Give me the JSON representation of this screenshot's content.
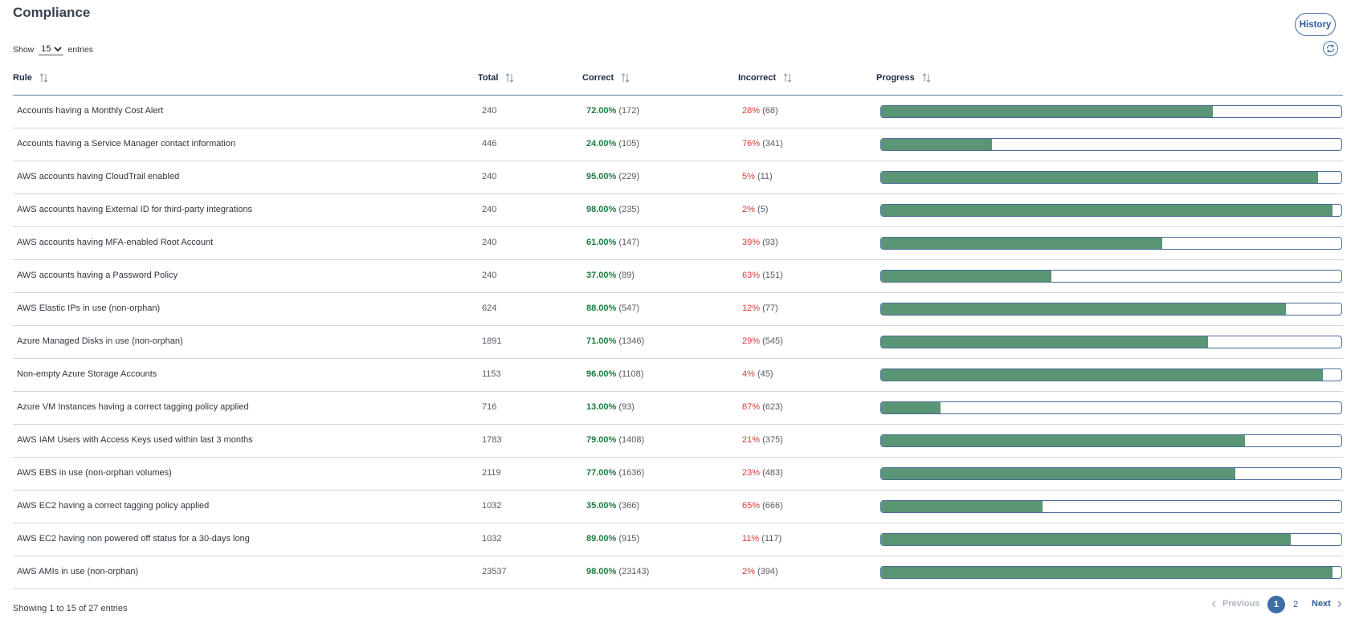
{
  "page": {
    "title": "Compliance"
  },
  "toolbar": {
    "history_label": "History"
  },
  "length_control": {
    "show_label": "Show",
    "selected": "15",
    "entries_label": "entries"
  },
  "table": {
    "headers": {
      "rule": "Rule",
      "total": "Total",
      "correct": "Correct",
      "incorrect": "Incorrect",
      "progress": "Progress"
    },
    "rows": [
      {
        "rule": "Accounts having a Monthly Cost Alert",
        "total": "240",
        "correct_pct": "72.00%",
        "correct_count": "(172)",
        "incorrect_pct": "28%",
        "incorrect_count": "(68)",
        "progress": 72
      },
      {
        "rule": "Accounts having a Service Manager contact information",
        "total": "446",
        "correct_pct": "24.00%",
        "correct_count": "(105)",
        "incorrect_pct": "76%",
        "incorrect_count": "(341)",
        "progress": 24
      },
      {
        "rule": "AWS accounts having CloudTrail enabled",
        "total": "240",
        "correct_pct": "95.00%",
        "correct_count": "(229)",
        "incorrect_pct": "5%",
        "incorrect_count": "(11)",
        "progress": 95
      },
      {
        "rule": "AWS accounts having External ID for third-party integrations",
        "total": "240",
        "correct_pct": "98.00%",
        "correct_count": "(235)",
        "incorrect_pct": "2%",
        "incorrect_count": "(5)",
        "progress": 98
      },
      {
        "rule": "AWS accounts having MFA-enabled Root Account",
        "total": "240",
        "correct_pct": "61.00%",
        "correct_count": "(147)",
        "incorrect_pct": "39%",
        "incorrect_count": "(93)",
        "progress": 61
      },
      {
        "rule": "AWS accounts having a Password Policy",
        "total": "240",
        "correct_pct": "37.00%",
        "correct_count": "(89)",
        "incorrect_pct": "63%",
        "incorrect_count": "(151)",
        "progress": 37
      },
      {
        "rule": "AWS Elastic IPs in use (non-orphan)",
        "total": "624",
        "correct_pct": "88.00%",
        "correct_count": "(547)",
        "incorrect_pct": "12%",
        "incorrect_count": "(77)",
        "progress": 88
      },
      {
        "rule": "Azure Managed Disks in use (non-orphan)",
        "total": "1891",
        "correct_pct": "71.00%",
        "correct_count": "(1346)",
        "incorrect_pct": "29%",
        "incorrect_count": "(545)",
        "progress": 71
      },
      {
        "rule": "Non-empty Azure Storage Accounts",
        "total": "1153",
        "correct_pct": "96.00%",
        "correct_count": "(1108)",
        "incorrect_pct": "4%",
        "incorrect_count": "(45)",
        "progress": 96
      },
      {
        "rule": "Azure VM Instances having a correct tagging policy applied",
        "total": "716",
        "correct_pct": "13.00%",
        "correct_count": "(93)",
        "incorrect_pct": "87%",
        "incorrect_count": "(623)",
        "progress": 13
      },
      {
        "rule": "AWS IAM Users with Access Keys used within last 3 months",
        "total": "1783",
        "correct_pct": "79.00%",
        "correct_count": "(1408)",
        "incorrect_pct": "21%",
        "incorrect_count": "(375)",
        "progress": 79
      },
      {
        "rule": "AWS EBS in use (non-orphan volumes)",
        "total": "2119",
        "correct_pct": "77.00%",
        "correct_count": "(1636)",
        "incorrect_pct": "23%",
        "incorrect_count": "(483)",
        "progress": 77
      },
      {
        "rule": "AWS EC2 having a correct tagging policy applied",
        "total": "1032",
        "correct_pct": "35.00%",
        "correct_count": "(366)",
        "incorrect_pct": "65%",
        "incorrect_count": "(666)",
        "progress": 35
      },
      {
        "rule": "AWS EC2 having non powered off status for a 30-days long",
        "total": "1032",
        "correct_pct": "89.00%",
        "correct_count": "(915)",
        "incorrect_pct": "11%",
        "incorrect_count": "(117)",
        "progress": 89
      },
      {
        "rule": "AWS AMIs in use (non-orphan)",
        "total": "23537",
        "correct_pct": "98.00%",
        "correct_count": "(23143)",
        "incorrect_pct": "2%",
        "incorrect_count": "(394)",
        "progress": 98
      }
    ]
  },
  "footer": {
    "info": "Showing 1 to 15 of 27 entries",
    "pagination": {
      "previous": "Previous",
      "pages": [
        "1",
        "2"
      ],
      "current": "1",
      "next": "Next"
    }
  },
  "colors": {
    "accent": "#3d6ea6",
    "progress_fill": "#5a9575",
    "correct": "#1e7b3f",
    "incorrect": "#d93a3a"
  },
  "icons": {
    "refresh": "refresh-icon",
    "sort": "sort-icon",
    "dropdown": "chevron-down-icon"
  }
}
